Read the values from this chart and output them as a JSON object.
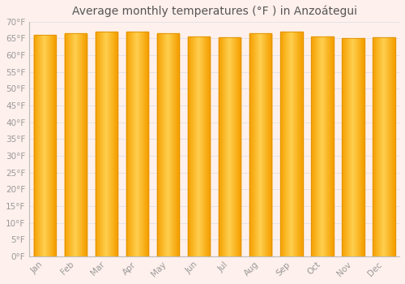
{
  "title": "Average monthly temperatures (°F ) in Anzoátegui",
  "months": [
    "Jan",
    "Feb",
    "Mar",
    "Apr",
    "May",
    "Jun",
    "Jul",
    "Aug",
    "Sep",
    "Oct",
    "Nov",
    "Dec"
  ],
  "values": [
    66.0,
    66.5,
    67.1,
    67.0,
    66.5,
    65.5,
    65.3,
    66.5,
    67.0,
    65.5,
    65.0,
    65.3
  ],
  "ylim": [
    0,
    70
  ],
  "yticks": [
    0,
    5,
    10,
    15,
    20,
    25,
    30,
    35,
    40,
    45,
    50,
    55,
    60,
    65,
    70
  ],
  "ytick_labels": [
    "0°F",
    "5°F",
    "10°F",
    "15°F",
    "20°F",
    "25°F",
    "30°F",
    "35°F",
    "40°F",
    "45°F",
    "50°F",
    "55°F",
    "60°F",
    "65°F",
    "70°F"
  ],
  "bar_color_center": "#FFD050",
  "bar_color_edge": "#F5A000",
  "bar_outline_color": "#E09000",
  "background_color": "#FEF0EC",
  "grid_color": "#E0E0E8",
  "title_fontsize": 10,
  "tick_fontsize": 7.5,
  "tick_color": "#999999",
  "title_color": "#555555"
}
